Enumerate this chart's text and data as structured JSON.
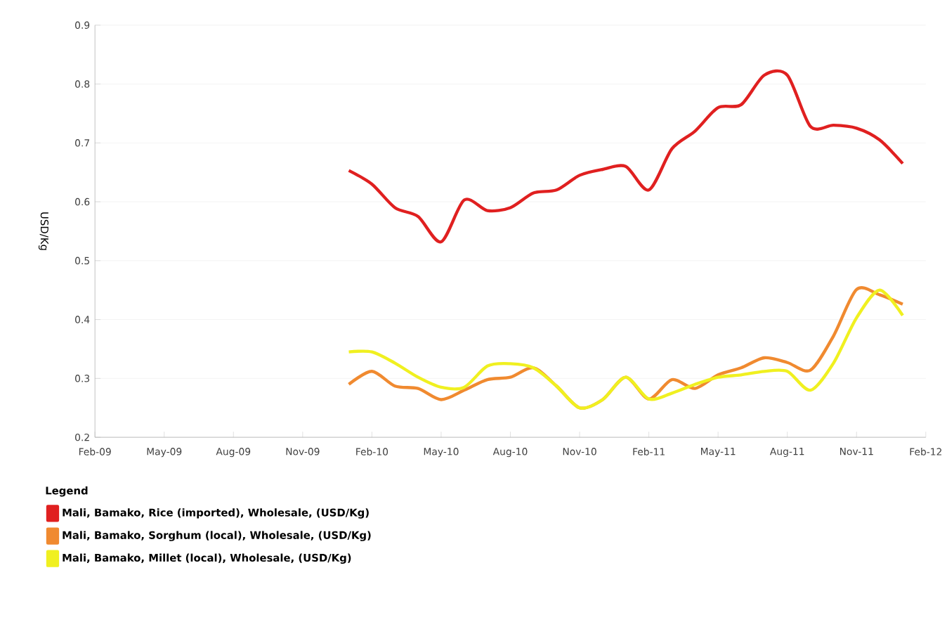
{
  "chart_data": {
    "type": "line",
    "ylabel": "USD/Kg",
    "legend_title": "Legend",
    "x": [
      "2010-01",
      "2010-02",
      "2010-03",
      "2010-04",
      "2010-05",
      "2010-06",
      "2010-07",
      "2010-08",
      "2010-09",
      "2010-10",
      "2010-11",
      "2010-12",
      "2011-01",
      "2011-02",
      "2011-03",
      "2011-04",
      "2011-05",
      "2011-06",
      "2011-07",
      "2011-08",
      "2011-09",
      "2011-10",
      "2011-11",
      "2011-12",
      "2012-01"
    ],
    "series": [
      {
        "name": "Mali, Bamako, Rice (imported), Wholesale, (USD/Kg)",
        "color": "#e02020",
        "values": [
          0.653,
          0.63,
          0.59,
          0.575,
          0.532,
          0.603,
          0.585,
          0.59,
          0.615,
          0.62,
          0.645,
          0.655,
          0.66,
          0.62,
          0.69,
          0.72,
          0.76,
          0.765,
          0.815,
          0.815,
          0.728,
          0.73,
          0.725,
          0.705,
          0.665
        ]
      },
      {
        "name": "Mali, Bamako, Sorghum (local), Wholesale, (USD/Kg)",
        "color": "#f08a30",
        "values": [
          0.29,
          0.312,
          0.287,
          0.283,
          0.264,
          0.28,
          0.298,
          0.302,
          0.318,
          0.287,
          0.25,
          0.264,
          0.302,
          0.265,
          0.298,
          0.283,
          0.306,
          0.318,
          0.335,
          0.327,
          0.314,
          0.372,
          0.451,
          0.442,
          0.426
        ]
      },
      {
        "name": "Mali, Bamako, Millet (local), Wholesale, (USD/Kg)",
        "color": "#f0f020",
        "values": [
          0.345,
          0.345,
          0.326,
          0.302,
          0.285,
          0.285,
          0.321,
          0.325,
          0.318,
          0.287,
          0.25,
          0.264,
          0.302,
          0.265,
          0.275,
          0.29,
          0.302,
          0.306,
          0.312,
          0.312,
          0.28,
          0.326,
          0.403,
          0.45,
          0.407
        ]
      }
    ],
    "xlim": [
      "2009-02",
      "2012-02"
    ],
    "xticks": [
      {
        "value": "2009-02",
        "label": "Feb-09"
      },
      {
        "value": "2009-05",
        "label": "May-09"
      },
      {
        "value": "2009-08",
        "label": "Aug-09"
      },
      {
        "value": "2009-11",
        "label": "Nov-09"
      },
      {
        "value": "2010-02",
        "label": "Feb-10"
      },
      {
        "value": "2010-05",
        "label": "May-10"
      },
      {
        "value": "2010-08",
        "label": "Aug-10"
      },
      {
        "value": "2010-11",
        "label": "Nov-10"
      },
      {
        "value": "2011-02",
        "label": "Feb-11"
      },
      {
        "value": "2011-05",
        "label": "May-11"
      },
      {
        "value": "2011-08",
        "label": "Aug-11"
      },
      {
        "value": "2011-11",
        "label": "Nov-11"
      },
      {
        "value": "2012-02",
        "label": "Feb-12"
      }
    ],
    "ylim": [
      0.2,
      0.9
    ],
    "yticks": [
      0.2,
      0.3,
      0.4,
      0.5,
      0.6,
      0.7,
      0.8,
      0.9
    ],
    "grid": "y",
    "legend": "bottom"
  }
}
